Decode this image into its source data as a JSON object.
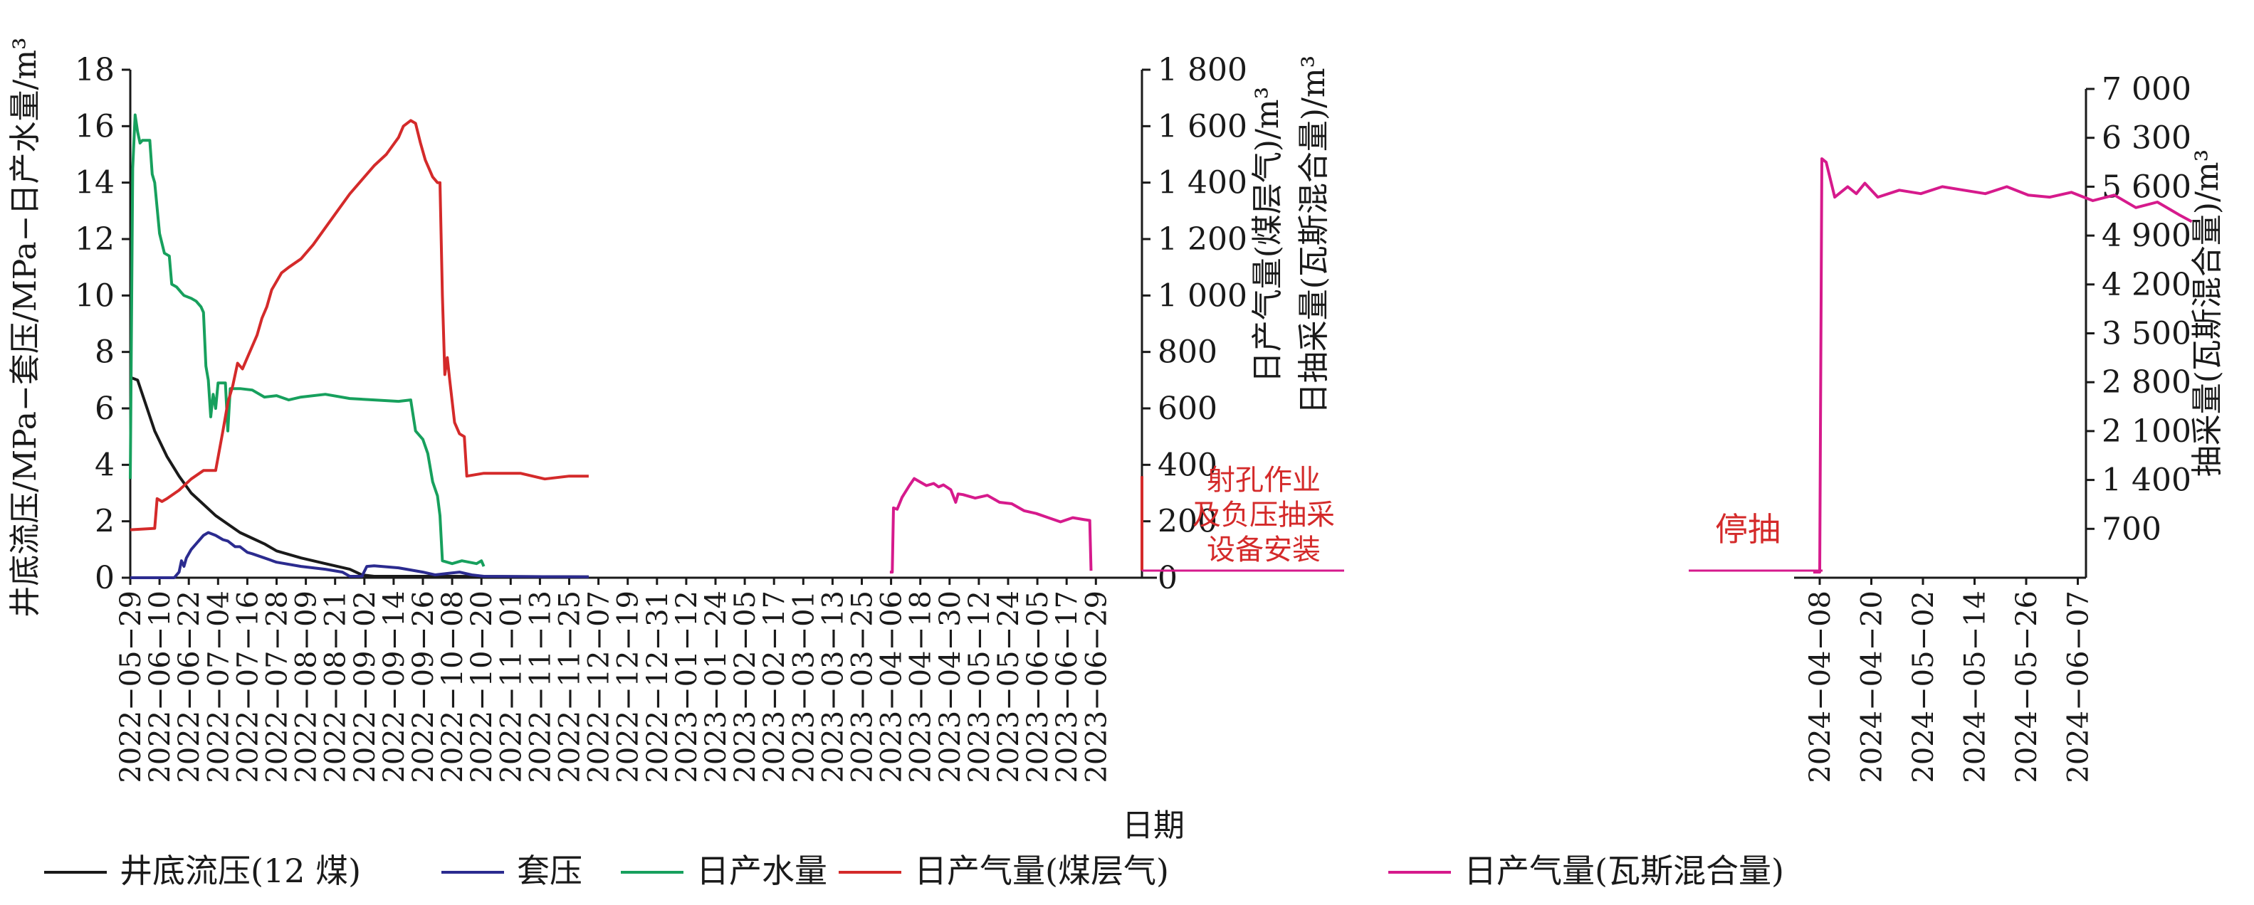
{
  "chart_data": {
    "type": "line",
    "xlabel": "日期",
    "x_tick_labels": [
      "2022−05−29",
      "2022−06−10",
      "2022−06−22",
      "2022−07−04",
      "2022−07−16",
      "2022−07−28",
      "2022−08−09",
      "2022−08−21",
      "2022−09−02",
      "2022−09−14",
      "2022−09−26",
      "2022−10−08",
      "2022−10−20",
      "2022−11−01",
      "2022−11−13",
      "2022−11−25",
      "2022−12−07",
      "2022−12−19",
      "2022−12−31",
      "2023−01−12",
      "2023−01−24",
      "2023−02−05",
      "2023−02−17",
      "2023−03−01",
      "2023−03−13",
      "2023−03−25",
      "2023−04−06",
      "2023−04−18",
      "2023−04−30",
      "2023−05−12",
      "2023−05−24",
      "2023−06−05",
      "2023−06−17",
      "2023−06−29",
      "2024−04−08",
      "2024−04−20",
      "2024−05−02",
      "2024−05−14",
      "2024−05−26",
      "2024−06−07"
    ],
    "axes": {
      "left": {
        "label": "井底流压/MPa−套压/MPa−日产水量/m³",
        "range": [
          0,
          18
        ],
        "ticks": [
          "0",
          "2",
          "4",
          "6",
          "8",
          "10",
          "12",
          "14",
          "16",
          "18"
        ]
      },
      "right1": {
        "label_line1": "日产气量(煤层气)/m³",
        "label_line2": "日抽采量(瓦斯混合量)/m³",
        "range": [
          0,
          1800
        ],
        "ticks": [
          "0",
          "200",
          "400",
          "600",
          "800",
          "1 000",
          "1 200",
          "1 400",
          "1 600",
          "1 800"
        ]
      },
      "right2": {
        "label": "抽采量(瓦斯混合量)/m³",
        "range": [
          0,
          7000
        ],
        "ticks": [
          "700",
          "1 400",
          "2 100",
          "2 800",
          "3 500",
          "4 200",
          "4 900",
          "5 600",
          "6 300",
          "7 000"
        ]
      }
    },
    "annotations": {
      "perforation": [
        "射孔作业",
        "及负压抽采",
        "设备安装"
      ],
      "stop": "停抽"
    },
    "series": [
      {
        "name": "井底流压(12 煤)",
        "color": "#1a1a1a",
        "axis": "left",
        "points": [
          [
            0,
            7.1
          ],
          [
            3,
            7.0
          ],
          [
            10,
            5.2
          ],
          [
            15,
            4.3
          ],
          [
            20,
            3.6
          ],
          [
            25,
            3.0
          ],
          [
            30,
            2.6
          ],
          [
            35,
            2.2
          ],
          [
            40,
            1.9
          ],
          [
            45,
            1.6
          ],
          [
            50,
            1.4
          ],
          [
            55,
            1.2
          ],
          [
            60,
            0.95
          ],
          [
            70,
            0.7
          ],
          [
            80,
            0.5
          ],
          [
            90,
            0.3
          ],
          [
            95,
            0.1
          ],
          [
            100,
            0.05
          ],
          [
            130,
            0.05
          ],
          [
            160,
            0.04
          ],
          [
            188,
            0.03
          ]
        ]
      },
      {
        "name": "套压",
        "color": "#2b2b8f",
        "axis": "left",
        "points": [
          [
            0,
            0
          ],
          [
            18,
            0
          ],
          [
            20,
            0.2
          ],
          [
            21,
            0.6
          ],
          [
            22,
            0.4
          ],
          [
            23,
            0.7
          ],
          [
            25,
            1.0
          ],
          [
            28,
            1.3
          ],
          [
            30,
            1.5
          ],
          [
            32,
            1.6
          ],
          [
            35,
            1.5
          ],
          [
            38,
            1.35
          ],
          [
            40,
            1.3
          ],
          [
            43,
            1.1
          ],
          [
            45,
            1.1
          ],
          [
            48,
            0.9
          ],
          [
            50,
            0.85
          ],
          [
            55,
            0.7
          ],
          [
            60,
            0.55
          ],
          [
            70,
            0.4
          ],
          [
            80,
            0.3
          ],
          [
            87,
            0.2
          ],
          [
            90,
            0.05
          ],
          [
            95,
            0.05
          ],
          [
            97,
            0.4
          ],
          [
            100,
            0.42
          ],
          [
            110,
            0.35
          ],
          [
            120,
            0.2
          ],
          [
            125,
            0.1
          ],
          [
            130,
            0.15
          ],
          [
            135,
            0.2
          ],
          [
            140,
            0.1
          ],
          [
            145,
            0.05
          ],
          [
            188,
            0.03
          ]
        ]
      },
      {
        "name": "日产水量",
        "color": "#17a05d",
        "axis": "left",
        "points": [
          [
            0,
            3.5
          ],
          [
            1,
            14.5
          ],
          [
            2,
            16.4
          ],
          [
            3,
            15.8
          ],
          [
            4,
            15.4
          ],
          [
            5,
            15.5
          ],
          [
            8,
            15.5
          ],
          [
            9,
            14.3
          ],
          [
            10,
            14.0
          ],
          [
            12,
            12.2
          ],
          [
            14,
            11.5
          ],
          [
            16,
            11.4
          ],
          [
            17,
            10.4
          ],
          [
            19,
            10.3
          ],
          [
            21,
            10.1
          ],
          [
            22,
            10.0
          ],
          [
            25,
            9.9
          ],
          [
            27,
            9.8
          ],
          [
            29,
            9.6
          ],
          [
            30,
            9.4
          ],
          [
            31,
            7.5
          ],
          [
            32,
            7.0
          ],
          [
            33,
            5.7
          ],
          [
            34,
            6.5
          ],
          [
            35,
            6.0
          ],
          [
            36,
            6.9
          ],
          [
            39,
            6.9
          ],
          [
            40,
            5.2
          ],
          [
            41,
            6.7
          ],
          [
            45,
            6.7
          ],
          [
            50,
            6.65
          ],
          [
            55,
            6.4
          ],
          [
            60,
            6.45
          ],
          [
            65,
            6.3
          ],
          [
            70,
            6.4
          ],
          [
            80,
            6.5
          ],
          [
            90,
            6.35
          ],
          [
            100,
            6.3
          ],
          [
            110,
            6.25
          ],
          [
            115,
            6.3
          ],
          [
            117,
            5.2
          ],
          [
            120,
            4.9
          ],
          [
            122,
            4.4
          ],
          [
            124,
            3.4
          ],
          [
            126,
            2.9
          ],
          [
            127,
            2.2
          ],
          [
            128,
            0.6
          ],
          [
            132,
            0.5
          ],
          [
            136,
            0.6
          ],
          [
            142,
            0.5
          ],
          [
            144,
            0.6
          ],
          [
            145,
            0.4
          ]
        ]
      },
      {
        "name": "日产气量(煤层气)",
        "color": "#d42a2a",
        "axis": "right1",
        "points": [
          [
            0,
            170
          ],
          [
            10,
            175
          ],
          [
            11,
            280
          ],
          [
            13,
            270
          ],
          [
            15,
            280
          ],
          [
            20,
            310
          ],
          [
            25,
            350
          ],
          [
            30,
            380
          ],
          [
            35,
            380
          ],
          [
            38,
            520
          ],
          [
            40,
            620
          ],
          [
            42,
            680
          ],
          [
            44,
            760
          ],
          [
            46,
            740
          ],
          [
            48,
            780
          ],
          [
            50,
            820
          ],
          [
            52,
            860
          ],
          [
            54,
            920
          ],
          [
            56,
            960
          ],
          [
            58,
            1020
          ],
          [
            62,
            1080
          ],
          [
            65,
            1100
          ],
          [
            70,
            1130
          ],
          [
            75,
            1180
          ],
          [
            80,
            1240
          ],
          [
            85,
            1300
          ],
          [
            90,
            1360
          ],
          [
            95,
            1410
          ],
          [
            100,
            1460
          ],
          [
            105,
            1500
          ],
          [
            110,
            1560
          ],
          [
            112,
            1600
          ],
          [
            115,
            1620
          ],
          [
            117,
            1610
          ],
          [
            119,
            1540
          ],
          [
            121,
            1480
          ],
          [
            123,
            1440
          ],
          [
            124,
            1420
          ],
          [
            126,
            1400
          ],
          [
            127,
            1400
          ],
          [
            128,
            1000
          ],
          [
            129,
            720
          ],
          [
            130,
            780
          ],
          [
            131,
            700
          ],
          [
            133,
            550
          ],
          [
            135,
            510
          ],
          [
            137,
            500
          ],
          [
            138,
            360
          ],
          [
            145,
            370
          ],
          [
            160,
            370
          ],
          [
            170,
            350
          ],
          [
            180,
            360
          ],
          [
            188,
            360
          ]
        ]
      },
      {
        "name": "日产气量(瓦斯混合量)",
        "color": "#d61a8c",
        "axis": "right2",
        "segments": [
          [
            [
              0,
              80
            ],
            [
              1,
              80
            ],
            [
              1.5,
              1000
            ],
            [
              3,
              980
            ],
            [
              5,
              1150
            ],
            [
              8,
              1320
            ],
            [
              10,
              1420
            ],
            [
              12,
              1380
            ],
            [
              15,
              1320
            ],
            [
              18,
              1350
            ],
            [
              20,
              1300
            ],
            [
              22,
              1330
            ],
            [
              25,
              1260
            ],
            [
              27,
              1080
            ],
            [
              28,
              1200
            ],
            [
              30,
              1190
            ],
            [
              35,
              1140
            ],
            [
              40,
              1180
            ],
            [
              45,
              1080
            ],
            [
              50,
              1060
            ],
            [
              55,
              960
            ],
            [
              60,
              920
            ],
            [
              65,
              860
            ],
            [
              70,
              800
            ],
            [
              75,
              860
            ],
            [
              80,
              830
            ],
            [
              82,
              820
            ],
            [
              82.5,
              100
            ]
          ],
          [
            [
              0,
              80
            ],
            [
              1.5,
              80
            ],
            [
              2,
              6000
            ],
            [
              3,
              5950
            ],
            [
              4,
              5700
            ],
            [
              5,
              5450
            ],
            [
              8,
              5600
            ],
            [
              10,
              5500
            ],
            [
              12,
              5650
            ],
            [
              15,
              5450
            ],
            [
              20,
              5550
            ],
            [
              25,
              5500
            ],
            [
              30,
              5600
            ],
            [
              35,
              5550
            ],
            [
              40,
              5500
            ],
            [
              45,
              5600
            ],
            [
              50,
              5480
            ],
            [
              55,
              5450
            ],
            [
              60,
              5520
            ],
            [
              65,
              5400
            ],
            [
              70,
              5480
            ],
            [
              75,
              5300
            ],
            [
              80,
              5380
            ],
            [
              85,
              5200
            ],
            [
              88,
              5100
            ]
          ]
        ]
      }
    ]
  }
}
